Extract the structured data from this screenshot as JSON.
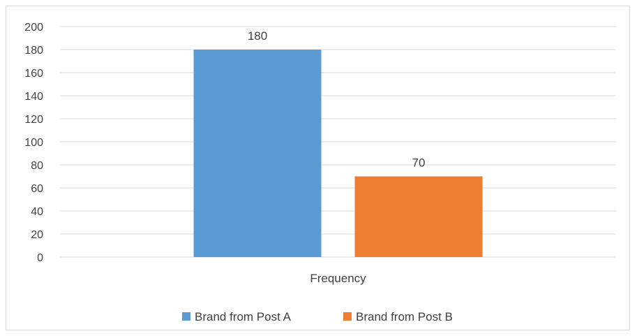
{
  "chart_data": {
    "type": "bar",
    "categories": [
      "Frequency"
    ],
    "series": [
      {
        "name": "Brand from Post A",
        "values": [
          180
        ],
        "color": "#5b9bd5"
      },
      {
        "name": "Brand from Post B",
        "values": [
          70
        ],
        "color": "#ed7d31"
      }
    ],
    "ylim": [
      0,
      200
    ],
    "yticks": [
      0,
      20,
      40,
      60,
      80,
      100,
      120,
      140,
      160,
      180,
      200
    ],
    "grid": true,
    "gridColor": "#d9d9d9",
    "legend_position": "bottom",
    "data_labels": true
  }
}
